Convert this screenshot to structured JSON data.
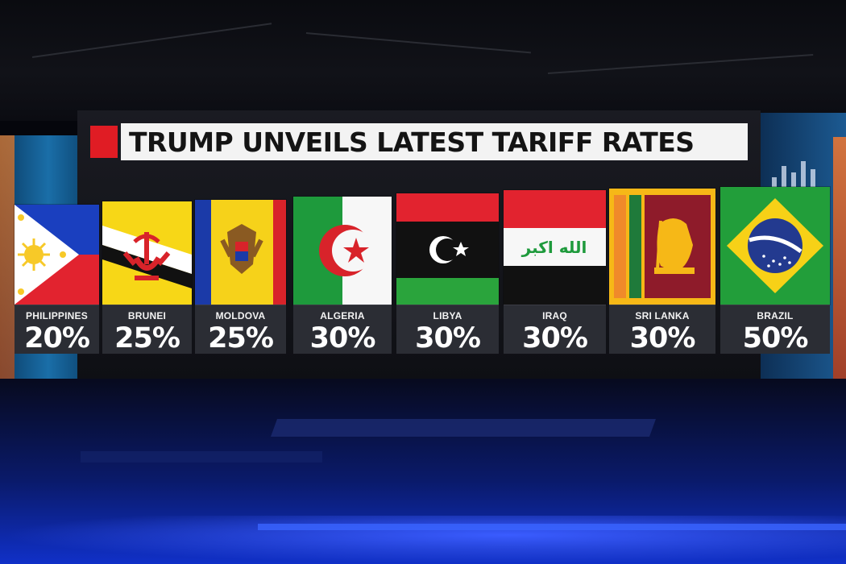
{
  "title": "TRUMP UNVEILS LATEST TARIFF RATES",
  "colors": {
    "accent_red": "#e01c24",
    "panel": "#2b2d34",
    "title_bg": "#f3f3f3"
  },
  "countries": [
    {
      "name": "PHILIPPINES",
      "rate": "20%",
      "flag_icon": "philippines-flag-icon"
    },
    {
      "name": "BRUNEI",
      "rate": "25%",
      "flag_icon": "brunei-flag-icon"
    },
    {
      "name": "MOLDOVA",
      "rate": "25%",
      "flag_icon": "moldova-flag-icon"
    },
    {
      "name": "ALGERIA",
      "rate": "30%",
      "flag_icon": "algeria-flag-icon"
    },
    {
      "name": "LIBYA",
      "rate": "30%",
      "flag_icon": "libya-flag-icon"
    },
    {
      "name": "IRAQ",
      "rate": "30%",
      "flag_icon": "iraq-flag-icon",
      "flag_text": "الله اكبر"
    },
    {
      "name": "SRI LANKA",
      "rate": "30%",
      "flag_icon": "sri-lanka-flag-icon"
    },
    {
      "name": "BRAZIL",
      "rate": "50%",
      "flag_icon": "brazil-flag-icon"
    }
  ]
}
